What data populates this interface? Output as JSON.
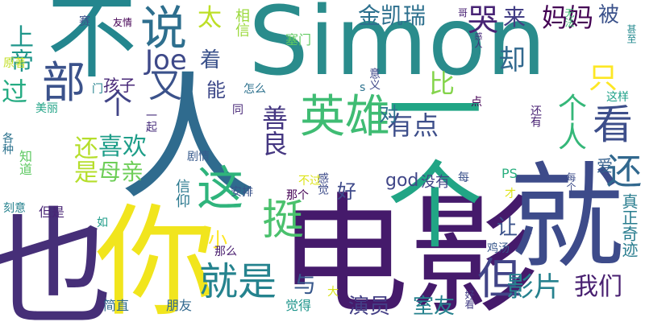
{
  "words": [
    {
      "text": "Simon",
      "color": "#2a8c8c"
    },
    {
      "text": "人",
      "color": "#2f6b8e"
    },
    {
      "text": "电影",
      "color": "#451a6b"
    },
    {
      "text": "就",
      "color": "#3d4b8a"
    },
    {
      "text": "一个",
      "color": "#21a585"
    },
    {
      "text": "也",
      "color": "#462f78"
    },
    {
      "text": "你",
      "color": "#f1e51d"
    },
    {
      "text": "不",
      "color": "#24868e"
    },
    {
      "text": "英雄",
      "color": "#3fbc73"
    },
    {
      "text": "说",
      "color": "#2e6f8e"
    },
    {
      "text": "部",
      "color": "#3b528b"
    },
    {
      "text": "这",
      "color": "#2fb47c"
    },
    {
      "text": "就是",
      "color": "#25838e"
    },
    {
      "text": "挺",
      "color": "#4ac16d"
    },
    {
      "text": "但",
      "color": "#414487"
    },
    {
      "text": "看",
      "color": "#3d4e8a"
    },
    {
      "text": "还",
      "color": "#31688e"
    },
    {
      "text": "影片",
      "color": "#26818e"
    },
    {
      "text": "个",
      "color": "#414487"
    },
    {
      "text": "又",
      "color": "#3b528b"
    },
    {
      "text": "Joe",
      "color": "#3e4989"
    },
    {
      "text": "金凯瑞",
      "color": "#2d708e"
    },
    {
      "text": "哭",
      "color": "#482475"
    },
    {
      "text": "来",
      "color": "#433e85"
    },
    {
      "text": "妈妈",
      "color": "#440154"
    },
    {
      "text": "被",
      "color": "#3b528b"
    },
    {
      "text": "太",
      "color": "#bddf26"
    },
    {
      "text": "有点",
      "color": "#3d4e8a"
    },
    {
      "text": "善良",
      "color": "#453781"
    },
    {
      "text": "个人",
      "color": "#35b779"
    },
    {
      "text": "喜欢",
      "color": "#1f9e89"
    },
    {
      "text": "母亲",
      "color": "#6ece58"
    },
    {
      "text": "还是",
      "color": "#b5de2b"
    },
    {
      "text": "过",
      "color": "#25ab82"
    },
    {
      "text": "上帝",
      "color": "#1f968b"
    },
    {
      "text": "比",
      "color": "#84d44b"
    },
    {
      "text": "只",
      "color": "#fde725"
    },
    {
      "text": "却",
      "color": "#31688e"
    },
    {
      "text": "我们",
      "color": "#481f70"
    },
    {
      "text": "演员",
      "color": "#433e85"
    },
    {
      "text": "室友",
      "color": "#26828e"
    },
    {
      "text": "让",
      "color": "#3b528b"
    },
    {
      "text": "与",
      "color": "#38588c"
    },
    {
      "text": "好",
      "color": "#3e4989"
    },
    {
      "text": "对",
      "color": "#2c728e"
    },
    {
      "text": "着",
      "color": "#3b528b"
    },
    {
      "text": "能",
      "color": "#3e4989"
    },
    {
      "text": "孩子",
      "color": "#482878"
    },
    {
      "text": "god",
      "color": "#404688"
    },
    {
      "text": "没有",
      "color": "#414487"
    },
    {
      "text": "真正奇迹",
      "color": "#287c8e"
    },
    {
      "text": "信仰",
      "color": "#2a788e"
    },
    {
      "text": "小",
      "color": "#fde725"
    },
    {
      "text": "那么",
      "color": "#481c6e"
    },
    {
      "text": "朋友",
      "color": "#31688e"
    },
    {
      "text": "觉得",
      "color": "#1f958b"
    },
    {
      "text": "简直",
      "color": "#2f6c8e"
    },
    {
      "text": "但是",
      "color": "#482475"
    },
    {
      "text": "原著",
      "color": "#c2df23"
    },
    {
      "text": "美丽",
      "color": "#20a386"
    },
    {
      "text": "知道",
      "color": "#5ec962"
    },
    {
      "text": "各种",
      "color": "#2c728e"
    },
    {
      "text": "刻意",
      "color": "#26828e"
    },
    {
      "text": "相信",
      "color": "#9bd93c"
    },
    {
      "text": "塞门",
      "color": "#60ca60"
    },
    {
      "text": "意义",
      "color": "#3f4889"
    },
    {
      "text": "怎么",
      "color": "#2d718e"
    },
    {
      "text": "剧情",
      "color": "#375a8c"
    },
    {
      "text": "这样",
      "color": "#1fa188"
    },
    {
      "text": "还有",
      "color": "#482173"
    },
    {
      "text": "爱",
      "color": "#34608d"
    },
    {
      "text": "PS",
      "color": "#29af7f"
    },
    {
      "text": "每个",
      "color": "#3d4d8a"
    },
    {
      "text": "每",
      "color": "#3b528b"
    },
    {
      "text": "那个",
      "color": "#440154"
    },
    {
      "text": "感觉",
      "color": "#3e4c8a"
    },
    {
      "text": "鸡汤",
      "color": "#38588c"
    },
    {
      "text": "安排",
      "color": "#3a538b"
    },
    {
      "text": "一起",
      "color": "#472d7b"
    },
    {
      "text": "门",
      "color": "#25838e"
    },
    {
      "text": "友情",
      "color": "#440154"
    },
    {
      "text": "赛",
      "color": "#3b528b"
    },
    {
      "text": "哥",
      "color": "#482173"
    },
    {
      "text": "无法",
      "color": "#3fbc73"
    },
    {
      "text": "甚至",
      "color": "#23898e"
    },
    {
      "text": "感人",
      "color": "#472a7a"
    },
    {
      "text": "s",
      "color": "#2c728e"
    },
    {
      "text": "点",
      "color": "#440154"
    },
    {
      "text": "大",
      "color": "#d8e219"
    },
    {
      "text": "好看",
      "color": "#433e85"
    },
    {
      "text": "不过",
      "color": "#dde318"
    },
    {
      "text": "才",
      "color": "#dde318"
    },
    {
      "text": "如",
      "color": "#1e9c89"
    },
    {
      "text": "同",
      "color": "#482878"
    }
  ]
}
